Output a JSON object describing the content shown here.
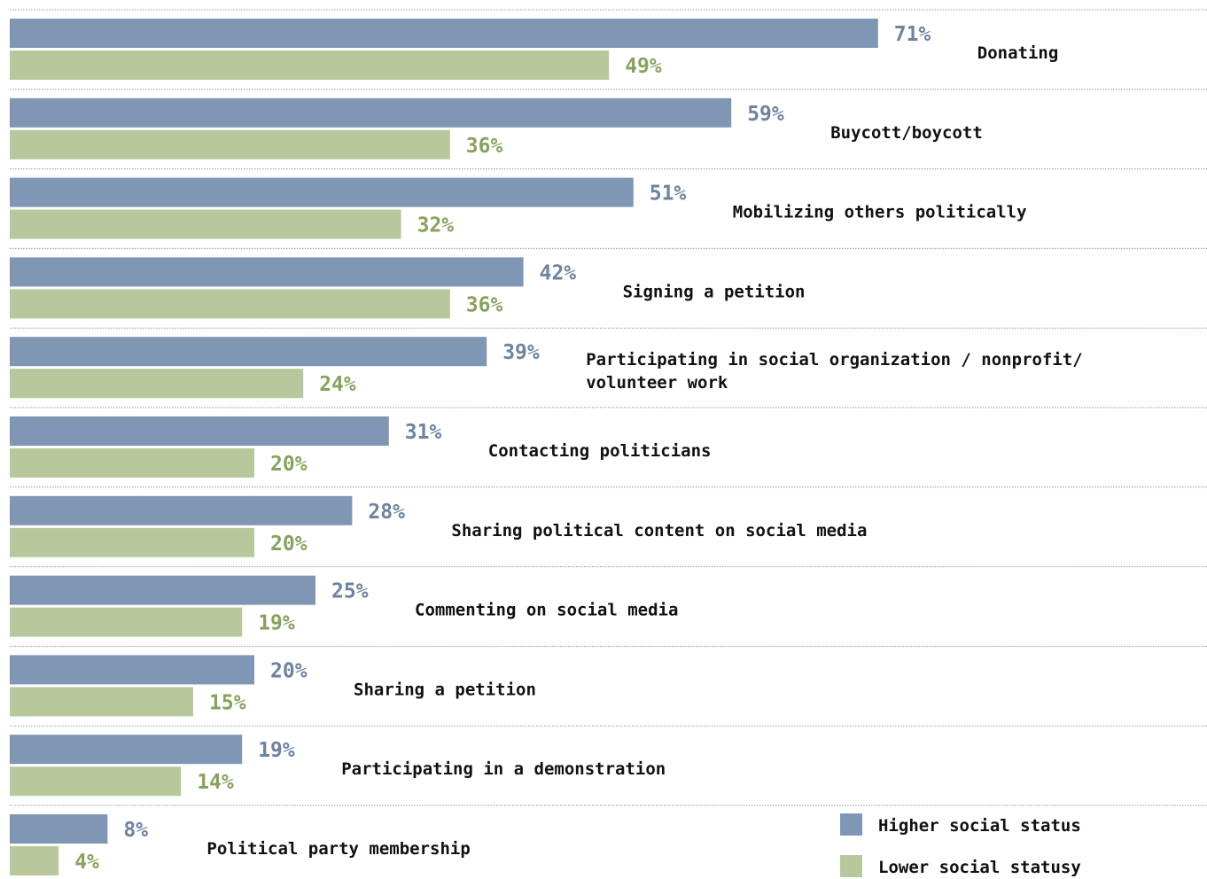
{
  "chart_data": {
    "type": "bar",
    "orientation": "horizontal",
    "categories": [
      "Donating",
      "Buycott/boycott",
      "Mobilizing others politically",
      "Signing a petition",
      "Participating in social organization / nonprofit/ volunteer work",
      "Contacting politicians",
      "Sharing political content on social media",
      "Commenting on social media",
      "Sharing a petition",
      "Participating in a demonstration",
      "Political party membership"
    ],
    "category_label_lines": [
      [
        "Donating"
      ],
      [
        "Buycott/boycott"
      ],
      [
        "Mobilizing others politically"
      ],
      [
        "Signing a petition"
      ],
      [
        "Participating in social organization / nonprofit/",
        "volunteer work"
      ],
      [
        "Contacting politicians"
      ],
      [
        "Sharing political content on social media"
      ],
      [
        "Commenting on social media"
      ],
      [
        "Sharing a petition"
      ],
      [
        "Participating in a demonstration"
      ],
      [
        "Political party membership"
      ]
    ],
    "series": [
      {
        "name": "Higher social status",
        "color": "#7f97b4",
        "label_color": "#6c84a1",
        "values": [
          71,
          59,
          51,
          42,
          39,
          31,
          28,
          25,
          20,
          19,
          8
        ]
      },
      {
        "name": "Lower social statusy",
        "color": "#b8c89c",
        "label_color": "#86a35c",
        "values": [
          49,
          36,
          32,
          36,
          24,
          20,
          20,
          19,
          15,
          14,
          4
        ]
      }
    ],
    "value_suffix": "%",
    "xlim": [
      0,
      100
    ],
    "grid": false,
    "row_separators": "dotted",
    "legend_position": "bottom-right"
  }
}
